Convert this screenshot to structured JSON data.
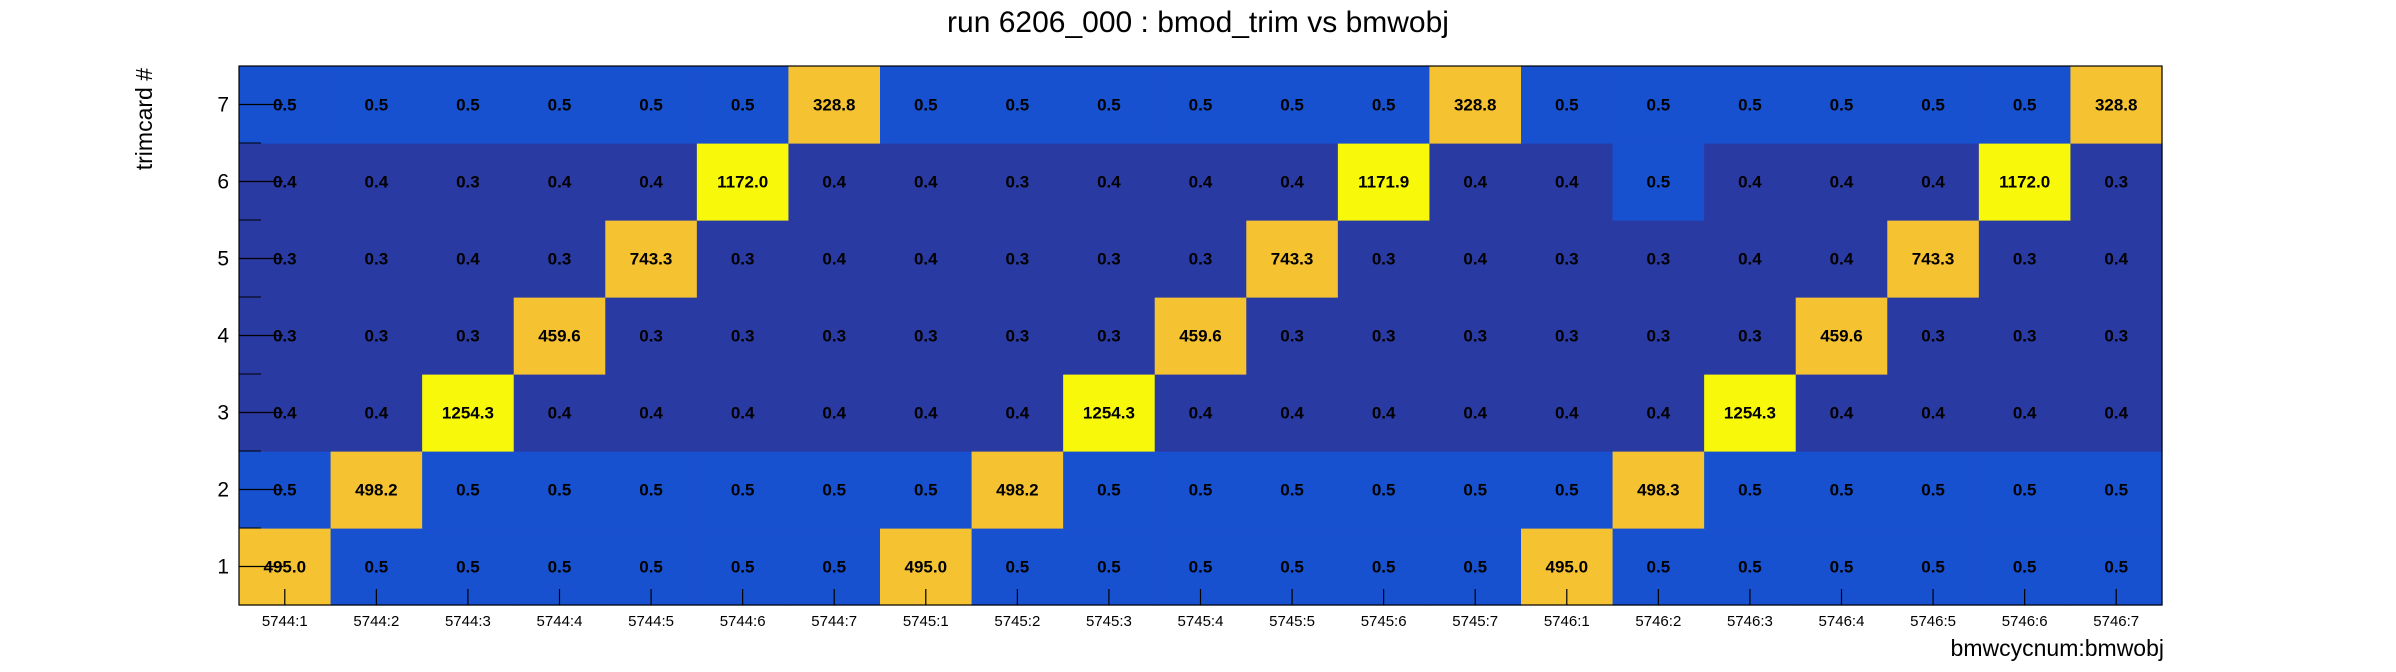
{
  "chart_data": {
    "type": "heatmap",
    "title": "run 6206_000 : bmod_trim vs bmwobj",
    "xlabel": "bmwcycnum:bmwobj",
    "ylabel": "trimcard #",
    "x_categories": [
      "5744:1",
      "5744:2",
      "5744:3",
      "5744:4",
      "5744:5",
      "5744:6",
      "5744:7",
      "5745:1",
      "5745:2",
      "5745:3",
      "5745:4",
      "5745:5",
      "5745:6",
      "5745:7",
      "5746:1",
      "5746:2",
      "5746:3",
      "5746:4",
      "5746:5",
      "5746:6",
      "5746:7"
    ],
    "y_categories": [
      "1",
      "2",
      "3",
      "4",
      "5",
      "6",
      "7"
    ],
    "values": [
      [
        "495.0",
        "0.5",
        "0.5",
        "0.5",
        "0.5",
        "0.5",
        "0.5",
        "495.0",
        "0.5",
        "0.5",
        "0.5",
        "0.5",
        "0.5",
        "0.5",
        "495.0",
        "0.5",
        "0.5",
        "0.5",
        "0.5",
        "0.5",
        "0.5"
      ],
      [
        "0.5",
        "498.2",
        "0.5",
        "0.5",
        "0.5",
        "0.5",
        "0.5",
        "0.5",
        "498.2",
        "0.5",
        "0.5",
        "0.5",
        "0.5",
        "0.5",
        "0.5",
        "498.3",
        "0.5",
        "0.5",
        "0.5",
        "0.5",
        "0.5"
      ],
      [
        "0.4",
        "0.4",
        "1254.3",
        "0.4",
        "0.4",
        "0.4",
        "0.4",
        "0.4",
        "0.4",
        "1254.3",
        "0.4",
        "0.4",
        "0.4",
        "0.4",
        "0.4",
        "0.4",
        "1254.3",
        "0.4",
        "0.4",
        "0.4",
        "0.4"
      ],
      [
        "0.3",
        "0.3",
        "0.3",
        "459.6",
        "0.3",
        "0.3",
        "0.3",
        "0.3",
        "0.3",
        "0.3",
        "459.6",
        "0.3",
        "0.3",
        "0.3",
        "0.3",
        "0.3",
        "0.3",
        "459.6",
        "0.3",
        "0.3",
        "0.3"
      ],
      [
        "0.3",
        "0.3",
        "0.4",
        "0.3",
        "743.3",
        "0.3",
        "0.4",
        "0.4",
        "0.3",
        "0.3",
        "0.3",
        "743.3",
        "0.3",
        "0.4",
        "0.3",
        "0.3",
        "0.4",
        "0.4",
        "743.3",
        "0.3",
        "0.4"
      ],
      [
        "0.4",
        "0.4",
        "0.3",
        "0.4",
        "0.4",
        "1172.0",
        "0.4",
        "0.4",
        "0.3",
        "0.4",
        "0.4",
        "0.4",
        "1171.9",
        "0.4",
        "0.4",
        "0.5",
        "0.4",
        "0.4",
        "0.4",
        "1172.0",
        "0.3"
      ],
      [
        "0.5",
        "0.5",
        "0.5",
        "0.5",
        "0.5",
        "0.5",
        "328.8",
        "0.5",
        "0.5",
        "0.5",
        "0.5",
        "0.5",
        "0.5",
        "328.8",
        "0.5",
        "0.5",
        "0.5",
        "0.5",
        "0.5",
        "0.5",
        "328.8"
      ]
    ],
    "colors": {
      "low_dark": "#2a3aa3",
      "low_blue": "#1851cf",
      "mid_orange": "#f5c232",
      "high_yellow": "#f8f80a",
      "frame": "#000000",
      "background": "#ffffff"
    },
    "grid": false,
    "legend": "none"
  }
}
